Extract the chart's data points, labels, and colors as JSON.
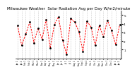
{
  "title": "Milwaukee Weather  Solar Radiation Avg per Day W/m2/minute",
  "title_fontsize": 4.0,
  "background_color": "#ffffff",
  "line_color": "#ff0000",
  "dot_color": "#000000",
  "y_values": [
    3.8,
    1.5,
    2.8,
    4.2,
    1.8,
    3.5,
    2.2,
    4.5,
    1.2,
    3.9,
    4.8,
    2.1,
    0.5,
    4.6,
    4.2,
    3.1,
    0.8,
    4.3,
    3.6,
    1.5,
    3.8,
    2.5,
    4.4,
    3.2,
    1.6,
    3.9
  ],
  "x_labels": [
    "Jan 1",
    "Jan 2",
    "Feb 1",
    "Feb 2",
    "Mar 1",
    "Mar 2",
    "Apr 1",
    "Apr 2",
    "May 1",
    "May 2",
    "Jun 1",
    "Jun 2",
    "Jul 1",
    "Jul 2",
    "Aug 1",
    "Aug 2",
    "Sep 1",
    "Sep 2",
    "Oct 1",
    "Oct 2",
    "Nov 1",
    "Nov 2",
    "Dec 1",
    "Dec 2",
    "Jan 1",
    "Jan 2"
  ],
  "yticks": [
    1,
    2,
    3,
    4,
    5
  ],
  "ylim": [
    0,
    5.5
  ],
  "grid_color": "#999999",
  "grid_style": "dotted"
}
